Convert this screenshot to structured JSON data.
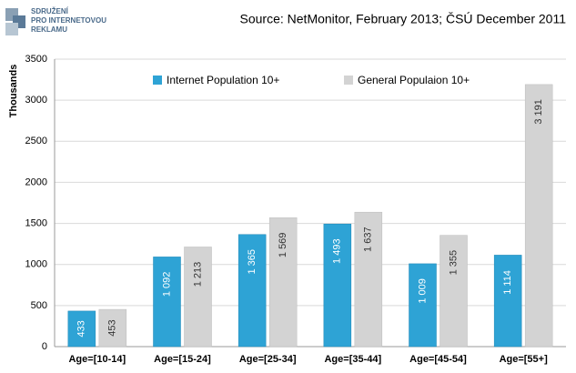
{
  "logo": {
    "lines": [
      "SDRUŽENÍ",
      "PRO INTERNETOVOU",
      "REKLAMU"
    ]
  },
  "chart_data": {
    "type": "bar",
    "title": "Source: NetMonitor, February 2013; ČSÚ December 2011",
    "y_label": "Thousands",
    "categories": [
      "Age=[10-14]",
      "Age=[15-24]",
      "Age=[25-34]",
      "Age=[35-44]",
      "Age=[45-54]",
      "Age=[55+]"
    ],
    "series": [
      {
        "name": "Internet Population 10+",
        "color": "#2ea3d5",
        "values": [
          433,
          1092,
          1365,
          1493,
          1009,
          1114
        ],
        "value_labels": [
          "433",
          "1 092",
          "1 365",
          "1 493",
          "1 009",
          "1 114"
        ]
      },
      {
        "name": "General Populaion 10+",
        "color": "#d3d3d3",
        "values": [
          453,
          1213,
          1569,
          1637,
          1355,
          3191
        ],
        "value_labels": [
          "453",
          "1 213",
          "1 569",
          "1 637",
          "1 355",
          "3 191"
        ]
      }
    ],
    "ylim": [
      0,
      3500
    ],
    "yticks": [
      0,
      500,
      1000,
      1500,
      2000,
      2500,
      3000,
      3500
    ],
    "grid": true,
    "legend": "top"
  }
}
